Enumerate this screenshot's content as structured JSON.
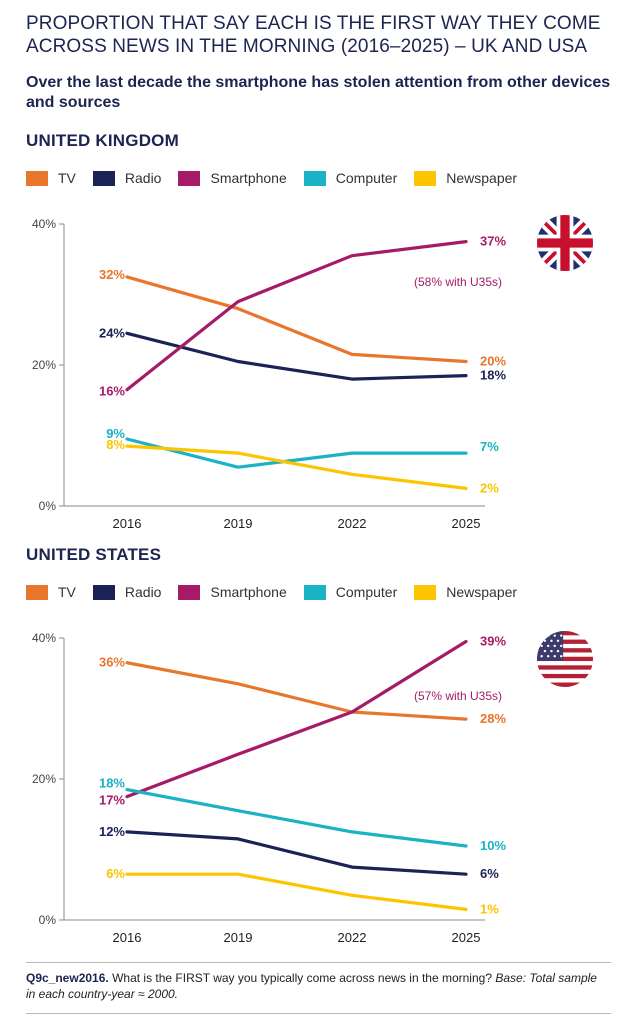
{
  "title": "PROPORTION THAT SAY EACH IS THE FIRST WAY THEY COME ACROSS NEWS IN THE MORNING (2016–2025) – UK AND USA",
  "subtitle": "Over the last decade the smartphone has stolen attention from other devices and sources",
  "colors": {
    "TV": "#e8762c",
    "Radio": "#1b2256",
    "Smartphone": "#a61b67",
    "Computer": "#19b3c5",
    "Newspaper": "#fcc500"
  },
  "legend": [
    "TV",
    "Radio",
    "Smartphone",
    "Computer",
    "Newspaper"
  ],
  "footnote": {
    "code": "Q9c_new2016.",
    "question": " What is the FIRST way you typically come across news in the morning? ",
    "base": "Base: Total sample in each country-year ≈ 2000."
  },
  "chart_data": [
    {
      "type": "line",
      "title": "UNITED KINGDOM",
      "flag_icon": "uk-flag-icon",
      "x": [
        "2016",
        "2019",
        "2022",
        "2025"
      ],
      "yticks": [
        "0%",
        "20%",
        "40%"
      ],
      "ylim": [
        0,
        40
      ],
      "grid": false,
      "annotation": "(58% with U35s)",
      "series": [
        {
          "name": "TV",
          "values": [
            32.5,
            28,
            21.5,
            20.5
          ],
          "start_label": "32%",
          "end_label": "20%"
        },
        {
          "name": "Radio",
          "values": [
            24.5,
            20.5,
            18,
            18.5
          ],
          "start_label": "24%",
          "end_label": "18%"
        },
        {
          "name": "Smartphone",
          "values": [
            16.5,
            29,
            35.5,
            37.5
          ],
          "start_label": "16%",
          "end_label": "37%"
        },
        {
          "name": "Computer",
          "values": [
            9.5,
            5.5,
            7.5,
            7.5
          ],
          "start_label": "9%",
          "end_label": "7%"
        },
        {
          "name": "Newspaper",
          "values": [
            8.5,
            7.5,
            4.5,
            2.5
          ],
          "start_label": "8%",
          "end_label": "2%"
        }
      ]
    },
    {
      "type": "line",
      "title": "UNITED STATES",
      "flag_icon": "us-flag-icon",
      "x": [
        "2016",
        "2019",
        "2022",
        "2025"
      ],
      "yticks": [
        "0%",
        "20%",
        "40%"
      ],
      "ylim": [
        0,
        40
      ],
      "grid": false,
      "annotation": "(57% with U35s)",
      "series": [
        {
          "name": "TV",
          "values": [
            36.5,
            33.5,
            29.5,
            28.5
          ],
          "start_label": "36%",
          "end_label": "28%"
        },
        {
          "name": "Radio",
          "values": [
            12.5,
            11.5,
            7.5,
            6.5
          ],
          "start_label": "12%",
          "end_label": "6%"
        },
        {
          "name": "Smartphone",
          "values": [
            17.5,
            23.5,
            29.5,
            39.5
          ],
          "start_label": "17%",
          "end_label": "39%"
        },
        {
          "name": "Computer",
          "values": [
            18.5,
            15.5,
            12.5,
            10.5
          ],
          "start_label": "18%",
          "end_label": "10%"
        },
        {
          "name": "Newspaper",
          "values": [
            6.5,
            6.5,
            3.5,
            1.5
          ],
          "start_label": "6%",
          "end_label": "1%"
        }
      ]
    }
  ]
}
